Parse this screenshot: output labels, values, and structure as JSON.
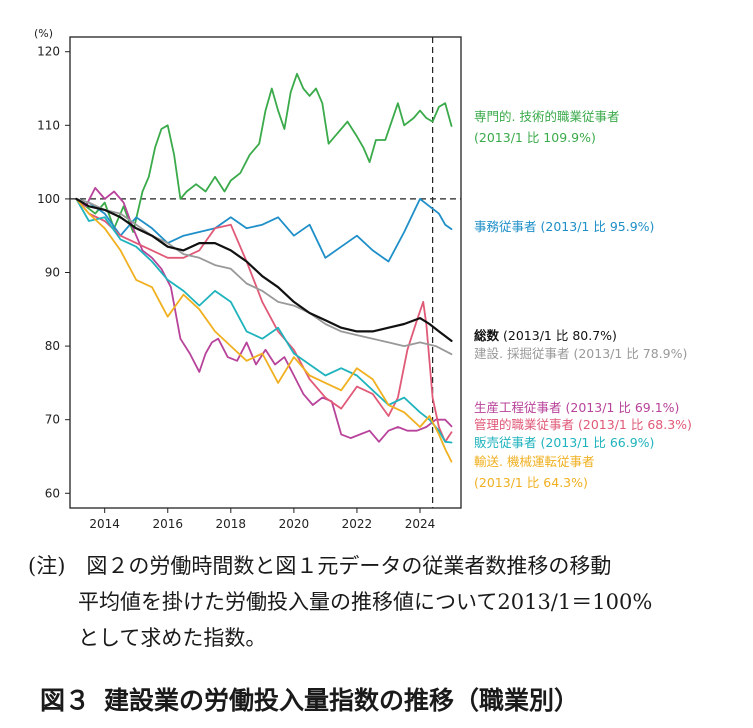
{
  "note": {
    "prefix": "(注)",
    "line1": "図２の労働時間数と図１元データの従業者数推移の移動",
    "line2": "平均値を掛けた労働投入量の推移値について2013/1＝100%",
    "line3": "として求めた指数。"
  },
  "caption": {
    "figure_no": "図３",
    "title": "建設業の労働投入量指数の推移（職業別）"
  },
  "chart_data": {
    "type": "line",
    "ylabel": "(%)",
    "xlim": [
      2012.9,
      2025.3
    ],
    "ylim": [
      58,
      122
    ],
    "yticks": [
      60,
      70,
      80,
      90,
      100,
      110,
      120
    ],
    "xticks": [
      2014,
      2016,
      2018,
      2020,
      2022,
      2024
    ],
    "grid": false,
    "legend": "right, labels at line ends",
    "reference_lines": {
      "horizontal_y": 100,
      "vertical_x": 2024.4
    },
    "series": [
      {
        "name": "専門的. 技術的職業従事者",
        "label": "(2013/1 比 109.9%)",
        "color": "#3aaa4a",
        "x": [
          2013.1,
          2013.4,
          2013.7,
          2014.0,
          2014.3,
          2014.6,
          2014.9,
          2015.2,
          2015.4,
          2015.6,
          2015.8,
          2016.0,
          2016.2,
          2016.4,
          2016.6,
          2016.9,
          2017.2,
          2017.5,
          2017.8,
          2018.0,
          2018.3,
          2018.6,
          2018.9,
          2019.1,
          2019.3,
          2019.5,
          2019.7,
          2019.9,
          2020.1,
          2020.3,
          2020.5,
          2020.7,
          2020.9,
          2021.1,
          2021.4,
          2021.7,
          2022.0,
          2022.2,
          2022.4,
          2022.6,
          2022.9,
          2023.1,
          2023.3,
          2023.5,
          2023.8,
          2024.0,
          2024.2,
          2024.4,
          2024.6,
          2024.8,
          2025.0
        ],
        "values": [
          100.0,
          99.0,
          98.0,
          99.5,
          96.0,
          99.0,
          95.5,
          101.0,
          103.0,
          107.0,
          109.5,
          110.0,
          106.0,
          100.0,
          101.0,
          102.0,
          101.0,
          103.0,
          101.0,
          102.5,
          103.5,
          106.0,
          107.5,
          112.0,
          115.0,
          112.0,
          109.5,
          114.5,
          117.0,
          115.0,
          114.0,
          115.0,
          113.0,
          107.5,
          109.0,
          110.5,
          108.5,
          107.0,
          105.0,
          108.0,
          108.0,
          110.5,
          113.0,
          110.0,
          111.0,
          112.0,
          111.0,
          110.5,
          112.5,
          113.0,
          109.9
        ]
      },
      {
        "name": "事務従事者",
        "label": "(2013/1 比 95.9%)",
        "color": "#1e8fc8",
        "x": [
          2013.1,
          2013.5,
          2014.0,
          2014.5,
          2015.0,
          2015.5,
          2016.0,
          2016.5,
          2017.0,
          2017.5,
          2018.0,
          2018.5,
          2019.0,
          2019.5,
          2020.0,
          2020.5,
          2021.0,
          2021.5,
          2022.0,
          2022.5,
          2023.0,
          2023.5,
          2024.0,
          2024.3,
          2024.6,
          2024.8,
          2025.0
        ],
        "values": [
          100.0,
          99.5,
          98.0,
          95.0,
          97.5,
          96.0,
          94.0,
          95.0,
          95.5,
          96.0,
          97.5,
          96.0,
          96.5,
          97.5,
          95.0,
          96.5,
          92.0,
          93.5,
          95.0,
          93.0,
          91.5,
          95.5,
          100.0,
          99.0,
          98.0,
          96.5,
          95.9
        ]
      },
      {
        "name": "総数",
        "label": "(2013/1 比 80.7%)",
        "color": "#111111",
        "x": [
          2013.1,
          2013.5,
          2014.0,
          2014.5,
          2015.0,
          2015.5,
          2016.0,
          2016.5,
          2017.0,
          2017.5,
          2018.0,
          2018.5,
          2019.0,
          2019.5,
          2020.0,
          2020.5,
          2021.0,
          2021.5,
          2022.0,
          2022.5,
          2023.0,
          2023.5,
          2024.0,
          2024.3,
          2024.6,
          2025.0
        ],
        "values": [
          100.0,
          99.0,
          98.5,
          97.5,
          96.0,
          95.0,
          93.5,
          93.0,
          94.0,
          94.0,
          93.0,
          91.5,
          89.5,
          88.0,
          86.0,
          84.5,
          83.5,
          82.5,
          82.0,
          82.0,
          82.5,
          83.0,
          83.8,
          83.0,
          82.0,
          80.7
        ]
      },
      {
        "name": "建設. 採掘従事者",
        "label": "(2013/1 比 78.9%)",
        "color": "#999999",
        "x": [
          2013.1,
          2013.5,
          2014.0,
          2014.5,
          2015.0,
          2015.5,
          2016.0,
          2016.5,
          2017.0,
          2017.5,
          2018.0,
          2018.5,
          2019.0,
          2019.5,
          2020.0,
          2020.5,
          2021.0,
          2021.5,
          2022.0,
          2022.5,
          2023.0,
          2023.5,
          2024.0,
          2024.5,
          2025.0
        ],
        "values": [
          100.0,
          99.5,
          98.5,
          98.0,
          96.5,
          95.0,
          94.0,
          92.5,
          92.0,
          91.0,
          90.5,
          88.5,
          87.5,
          86.0,
          85.5,
          84.5,
          83.0,
          82.0,
          81.5,
          81.0,
          80.5,
          80.0,
          80.5,
          80.0,
          78.9
        ]
      },
      {
        "name": "生産工程従事者",
        "label": "(2013/1 比 69.1%)",
        "color": "#b8439a",
        "x": [
          2013.1,
          2013.4,
          2013.7,
          2014.0,
          2014.3,
          2014.6,
          2014.9,
          2015.2,
          2015.5,
          2015.8,
          2016.1,
          2016.4,
          2016.7,
          2017.0,
          2017.2,
          2017.4,
          2017.6,
          2017.9,
          2018.2,
          2018.5,
          2018.8,
          2019.1,
          2019.4,
          2019.7,
          2020.0,
          2020.3,
          2020.6,
          2020.9,
          2021.2,
          2021.5,
          2021.8,
          2022.1,
          2022.4,
          2022.7,
          2023.0,
          2023.3,
          2023.6,
          2023.9,
          2024.2,
          2024.5,
          2024.8,
          2025.0
        ],
        "values": [
          100.0,
          99.0,
          101.5,
          100.0,
          101.0,
          99.5,
          96.0,
          93.0,
          92.0,
          90.5,
          88.0,
          81.0,
          79.0,
          76.5,
          79.0,
          80.5,
          81.0,
          78.5,
          78.0,
          80.5,
          77.5,
          79.5,
          77.5,
          78.5,
          76.0,
          73.5,
          72.0,
          73.0,
          72.5,
          68.0,
          67.5,
          68.0,
          68.5,
          67.0,
          68.5,
          69.0,
          68.5,
          68.5,
          69.0,
          70.0,
          70.0,
          69.1
        ]
      },
      {
        "name": "管理的職業従事者",
        "label": "(2013/1 比 68.3%)",
        "color": "#e05a78",
        "x": [
          2013.1,
          2013.5,
          2014.0,
          2014.5,
          2015.0,
          2015.5,
          2016.0,
          2016.5,
          2017.0,
          2017.5,
          2018.0,
          2018.5,
          2019.0,
          2019.5,
          2020.0,
          2020.5,
          2021.0,
          2021.5,
          2022.0,
          2022.5,
          2023.0,
          2023.3,
          2023.6,
          2023.9,
          2024.1,
          2024.2,
          2024.4,
          2024.6,
          2024.8,
          2025.0
        ],
        "values": [
          100.0,
          98.0,
          97.0,
          95.0,
          94.0,
          93.0,
          92.0,
          92.0,
          93.0,
          96.0,
          96.5,
          91.5,
          86.0,
          82.0,
          79.5,
          75.5,
          73.0,
          71.5,
          74.5,
          73.5,
          70.5,
          73.0,
          79.5,
          83.5,
          86.0,
          83.0,
          73.0,
          69.0,
          67.0,
          68.3
        ]
      },
      {
        "name": "販売従事者",
        "label": "(2013/1 比 66.9%)",
        "color": "#1fb3bd",
        "x": [
          2013.1,
          2013.5,
          2014.0,
          2014.5,
          2015.0,
          2015.5,
          2016.0,
          2016.5,
          2017.0,
          2017.5,
          2018.0,
          2018.5,
          2019.0,
          2019.5,
          2020.0,
          2020.5,
          2021.0,
          2021.5,
          2022.0,
          2022.5,
          2023.0,
          2023.5,
          2024.0,
          2024.3,
          2024.6,
          2024.8,
          2025.0
        ],
        "values": [
          100.0,
          97.0,
          97.5,
          94.5,
          93.5,
          91.5,
          89.0,
          87.5,
          85.5,
          87.5,
          86.0,
          82.0,
          81.0,
          82.5,
          79.0,
          77.5,
          76.0,
          77.0,
          76.0,
          74.0,
          72.0,
          73.0,
          71.0,
          70.0,
          68.5,
          67.0,
          66.9
        ]
      },
      {
        "name": "輸送. 機械運転従事者",
        "label": "(2013/1 比 64.3%)",
        "color": "#f0b020",
        "x": [
          2013.1,
          2013.5,
          2014.0,
          2014.5,
          2015.0,
          2015.5,
          2016.0,
          2016.5,
          2017.0,
          2017.5,
          2018.0,
          2018.5,
          2019.0,
          2019.5,
          2020.0,
          2020.5,
          2021.0,
          2021.5,
          2022.0,
          2022.5,
          2023.0,
          2023.5,
          2024.0,
          2024.3,
          2024.6,
          2024.8,
          2025.0
        ],
        "values": [
          100.0,
          98.0,
          96.0,
          93.0,
          89.0,
          88.0,
          84.0,
          87.0,
          85.0,
          82.0,
          80.0,
          78.0,
          79.0,
          75.0,
          78.5,
          76.0,
          75.0,
          74.0,
          77.0,
          75.5,
          72.0,
          71.0,
          69.0,
          70.5,
          68.0,
          66.0,
          64.3
        ]
      }
    ]
  }
}
